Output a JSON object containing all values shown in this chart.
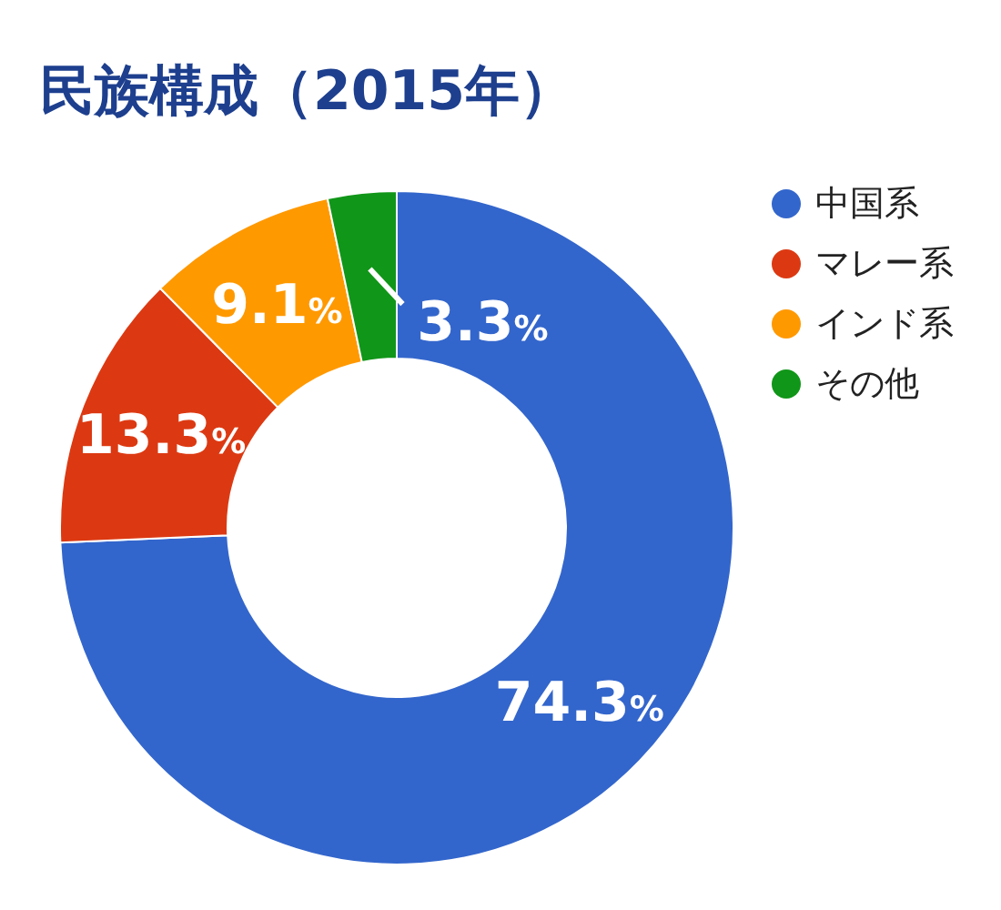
{
  "chart_data": {
    "type": "donut",
    "title": "民族構成（2015年）",
    "categories": [
      "中国系",
      "マレー系",
      "インド系",
      "その他"
    ],
    "values": [
      74.3,
      13.3,
      9.1,
      3.3
    ],
    "colors": [
      "#3366cc",
      "#dc3912",
      "#ff9900",
      "#109618"
    ],
    "value_labels": [
      "74.3%",
      "13.3%",
      "9.1%",
      "3.3%"
    ],
    "legend": "top right"
  }
}
